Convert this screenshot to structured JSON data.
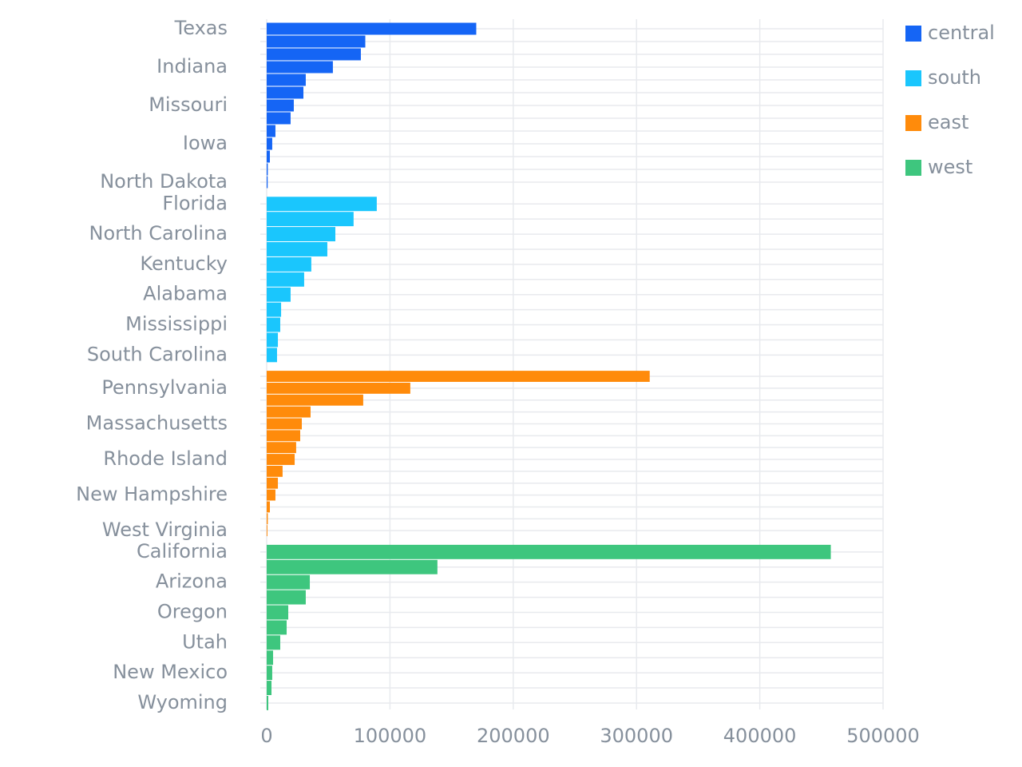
{
  "chart_data": {
    "type": "bar",
    "orientation": "horizontal",
    "faceted": true,
    "xlim": [
      0,
      500000
    ],
    "xticks": [
      0,
      100000,
      200000,
      300000,
      400000,
      500000
    ],
    "grid": true,
    "legend": "top-right",
    "series": [
      {
        "name": "central",
        "color": "#1565f5",
        "categories": [
          "Texas",
          null,
          null,
          "Indiana",
          null,
          null,
          "Missouri",
          null,
          null,
          "Iowa",
          null,
          null,
          "North Dakota"
        ],
        "values": [
          170000,
          80000,
          76400,
          53700,
          31700,
          29800,
          22000,
          19400,
          7100,
          4500,
          2600,
          900,
          800
        ]
      },
      {
        "name": "south",
        "color": "#1ac6fd",
        "categories": [
          "Florida",
          null,
          "North Carolina",
          null,
          "Kentucky",
          null,
          "Alabama",
          null,
          "Mississippi",
          null,
          "South Carolina"
        ],
        "values": [
          89300,
          70500,
          55700,
          49200,
          36200,
          30400,
          19400,
          11700,
          11000,
          9100,
          8400
        ]
      },
      {
        "name": "east",
        "color": "#ff8b0b",
        "categories": [
          null,
          "Pennsylvania",
          null,
          null,
          "Massachusetts",
          null,
          null,
          "Rhode Island",
          null,
          null,
          "New Hampshire",
          null,
          null,
          "West Virginia"
        ],
        "values": [
          310700,
          116500,
          78300,
          35600,
          28500,
          27200,
          23900,
          22700,
          12900,
          9100,
          7100,
          2600,
          900,
          600
        ]
      },
      {
        "name": "west",
        "color": "#3ec67e",
        "categories": [
          "California",
          null,
          "Arizona",
          null,
          "Oregon",
          null,
          "Utah",
          null,
          "New Mexico",
          null,
          "Wyoming"
        ],
        "values": [
          457600,
          138500,
          35000,
          31700,
          17500,
          16200,
          11000,
          5200,
          4500,
          3900,
          1300
        ]
      }
    ]
  }
}
